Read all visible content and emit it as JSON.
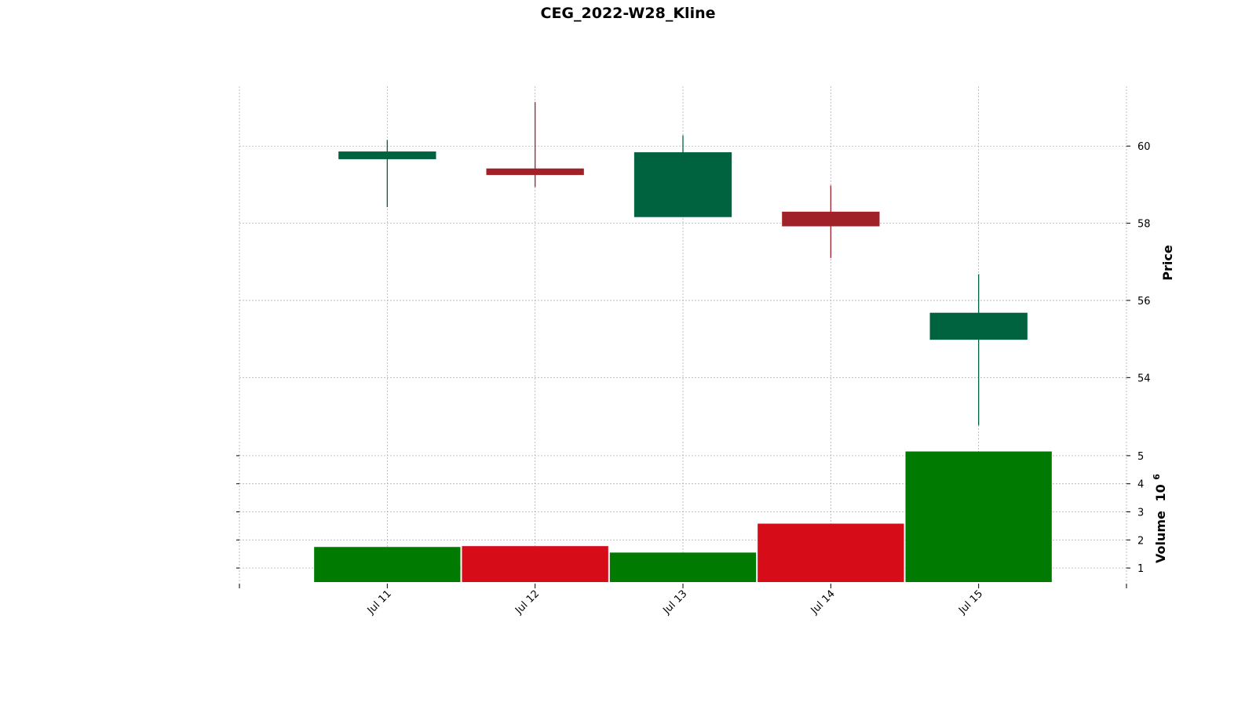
{
  "chart_data": {
    "type": "candlestick",
    "title": "CEG_2022-W28_Kline",
    "categories": [
      "Jul 11",
      "Jul 12",
      "Jul 13",
      "Jul 14",
      "Jul 15"
    ],
    "ohlc": [
      {
        "date": "Jul 11",
        "open": 59.66,
        "high": 60.16,
        "low": 58.42,
        "close": 59.86
      },
      {
        "date": "Jul 12",
        "open": 59.42,
        "high": 61.14,
        "low": 58.94,
        "close": 59.25
      },
      {
        "date": "Jul 13",
        "open": 58.16,
        "high": 60.28,
        "low": 58.16,
        "close": 59.84
      },
      {
        "date": "Jul 14",
        "open": 58.3,
        "high": 58.98,
        "low": 57.1,
        "close": 57.92
      },
      {
        "date": "Jul 15",
        "open": 54.98,
        "high": 56.68,
        "low": 52.76,
        "close": 55.68
      }
    ],
    "volume": {
      "label": "Volume",
      "multiplier_base": "10",
      "multiplier_exp": "6",
      "values": [
        1.75,
        1.78,
        1.55,
        2.58,
        5.15
      ]
    },
    "price_axis": {
      "label": "Price",
      "range": [
        52.4,
        61.55
      ],
      "ticks": [
        "54",
        "56",
        "58",
        "60"
      ]
    },
    "volume_axis": {
      "range": [
        0.5,
        5.5
      ],
      "ticks": [
        "1",
        "2",
        "3",
        "4",
        "5"
      ]
    },
    "colors": {
      "up_candle": "#006340",
      "down_candle": "#a02128",
      "up_volume": "#007a00",
      "down_volume": "#d60d19"
    },
    "grid": true
  }
}
